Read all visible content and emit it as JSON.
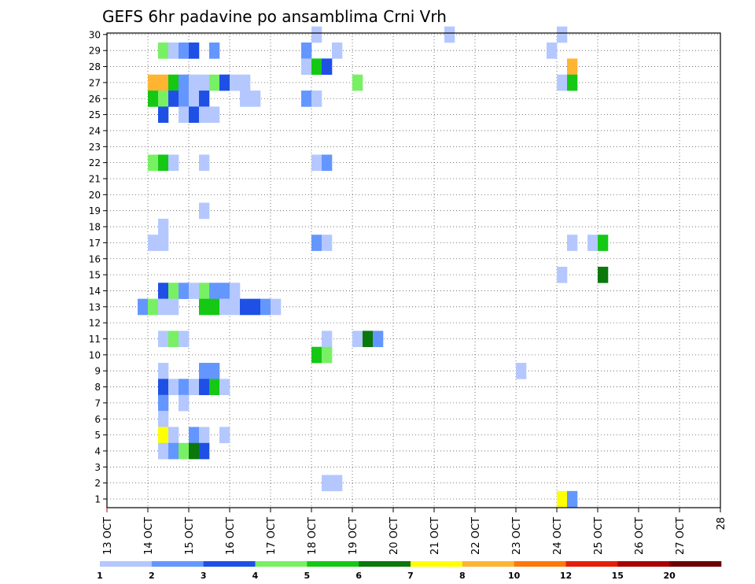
{
  "chart_data": {
    "type": "heatmap",
    "title": "GEFS 6hr padavine po ansamblima Crni Vrh",
    "xlabel": "",
    "ylabel": "",
    "x_ticks": [
      "13 OCT",
      "14 OCT",
      "15 OCT",
      "16 OCT",
      "17 OCT",
      "18 OCT",
      "19 OCT",
      "20 OCT",
      "21 OCT",
      "22 OCT",
      "23 OCT",
      "24 OCT",
      "25 OCT",
      "26 OCT",
      "27 OCT",
      "28"
    ],
    "y_ticks": [
      "1",
      "2",
      "3",
      "4",
      "5",
      "6",
      "7",
      "8",
      "9",
      "10",
      "11",
      "12",
      "13",
      "14",
      "15",
      "16",
      "17",
      "18",
      "19",
      "20",
      "21",
      "22",
      "23",
      "24",
      "25",
      "26",
      "27",
      "28",
      "29",
      "30"
    ],
    "x_range_steps": [
      0,
      60
    ],
    "y_range": [
      1,
      30
    ],
    "x_step_hours": 6,
    "grid": true,
    "legend": "bottom",
    "colorbar": {
      "colors": [
        "#b4c8ff",
        "#6496ff",
        "#1e50e6",
        "#78f064",
        "#14c814",
        "#0a780a",
        "#ffff00",
        "#ffb432",
        "#ff780a",
        "#e61e0a",
        "#aa0000",
        "#6e0000"
      ],
      "labels": [
        "1",
        "2",
        "3",
        "4",
        "5",
        "6",
        "7",
        "8",
        "10",
        "12",
        "15",
        "20"
      ]
    },
    "cells": [
      [
        30,
        20,
        1
      ],
      [
        30,
        33,
        1
      ],
      [
        30,
        44,
        1
      ],
      [
        29,
        5,
        4
      ],
      [
        29,
        6,
        1
      ],
      [
        29,
        7,
        2
      ],
      [
        29,
        8,
        3
      ],
      [
        29,
        10,
        2
      ],
      [
        29,
        19,
        2
      ],
      [
        29,
        22,
        1
      ],
      [
        29,
        43,
        1
      ],
      [
        28,
        19,
        1
      ],
      [
        28,
        20,
        5
      ],
      [
        28,
        21,
        3
      ],
      [
        28,
        45,
        8
      ],
      [
        27,
        4,
        8
      ],
      [
        27,
        5,
        8
      ],
      [
        27,
        6,
        5
      ],
      [
        27,
        7,
        2
      ],
      [
        27,
        8,
        1
      ],
      [
        27,
        9,
        1
      ],
      [
        27,
        10,
        4
      ],
      [
        27,
        11,
        3
      ],
      [
        27,
        12,
        1
      ],
      [
        27,
        13,
        1
      ],
      [
        27,
        24,
        4
      ],
      [
        27,
        44,
        1
      ],
      [
        27,
        45,
        5
      ],
      [
        26,
        4,
        5
      ],
      [
        26,
        5,
        4
      ],
      [
        26,
        6,
        3
      ],
      [
        26,
        7,
        2
      ],
      [
        26,
        8,
        1
      ],
      [
        26,
        9,
        3
      ],
      [
        26,
        13,
        1
      ],
      [
        26,
        14,
        1
      ],
      [
        26,
        19,
        2
      ],
      [
        26,
        20,
        1
      ],
      [
        25,
        5,
        3
      ],
      [
        25,
        7,
        1
      ],
      [
        25,
        8,
        3
      ],
      [
        25,
        9,
        1
      ],
      [
        25,
        10,
        1
      ],
      [
        22,
        4,
        4
      ],
      [
        22,
        5,
        5
      ],
      [
        22,
        6,
        1
      ],
      [
        22,
        9,
        1
      ],
      [
        22,
        20,
        1
      ],
      [
        22,
        21,
        2
      ],
      [
        19,
        9,
        1
      ],
      [
        18,
        5,
        1
      ],
      [
        17,
        4,
        1
      ],
      [
        17,
        5,
        1
      ],
      [
        17,
        20,
        2
      ],
      [
        17,
        21,
        1
      ],
      [
        17,
        45,
        1
      ],
      [
        17,
        47,
        1
      ],
      [
        17,
        48,
        5
      ],
      [
        15,
        44,
        1
      ],
      [
        15,
        48,
        6
      ],
      [
        14,
        5,
        3
      ],
      [
        14,
        6,
        4
      ],
      [
        14,
        7,
        2
      ],
      [
        14,
        8,
        1
      ],
      [
        14,
        9,
        4
      ],
      [
        14,
        10,
        2
      ],
      [
        14,
        11,
        2
      ],
      [
        14,
        12,
        1
      ],
      [
        13,
        3,
        2
      ],
      [
        13,
        4,
        4
      ],
      [
        13,
        5,
        1
      ],
      [
        13,
        6,
        1
      ],
      [
        13,
        9,
        5
      ],
      [
        13,
        10,
        5
      ],
      [
        13,
        11,
        1
      ],
      [
        13,
        12,
        1
      ],
      [
        13,
        13,
        3
      ],
      [
        13,
        14,
        3
      ],
      [
        13,
        15,
        2
      ],
      [
        13,
        16,
        1
      ],
      [
        11,
        5,
        1
      ],
      [
        11,
        6,
        4
      ],
      [
        11,
        7,
        1
      ],
      [
        11,
        21,
        1
      ],
      [
        11,
        24,
        1
      ],
      [
        11,
        25,
        6
      ],
      [
        11,
        26,
        2
      ],
      [
        10,
        20,
        5
      ],
      [
        10,
        21,
        4
      ],
      [
        9,
        5,
        1
      ],
      [
        9,
        9,
        2
      ],
      [
        9,
        10,
        2
      ],
      [
        9,
        40,
        1
      ],
      [
        8,
        5,
        3
      ],
      [
        8,
        6,
        1
      ],
      [
        8,
        7,
        2
      ],
      [
        8,
        8,
        1
      ],
      [
        8,
        9,
        3
      ],
      [
        8,
        10,
        5
      ],
      [
        8,
        11,
        1
      ],
      [
        7,
        5,
        2
      ],
      [
        7,
        7,
        1
      ],
      [
        6,
        5,
        1
      ],
      [
        5,
        5,
        7
      ],
      [
        5,
        6,
        1
      ],
      [
        5,
        8,
        2
      ],
      [
        5,
        9,
        1
      ],
      [
        5,
        11,
        1
      ],
      [
        4,
        5,
        1
      ],
      [
        4,
        6,
        2
      ],
      [
        4,
        7,
        4
      ],
      [
        4,
        8,
        6
      ],
      [
        4,
        9,
        3
      ],
      [
        2,
        21,
        1
      ],
      [
        2,
        22,
        1
      ],
      [
        1,
        44,
        7
      ],
      [
        1,
        45,
        2
      ]
    ]
  }
}
